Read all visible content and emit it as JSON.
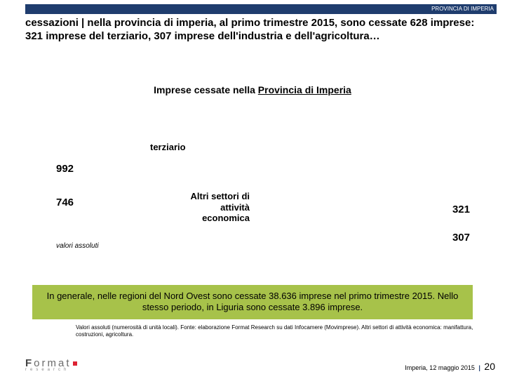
{
  "header": {
    "label": "PROVINCIA DI IMPERIA"
  },
  "title": {
    "lead": "cessazioni",
    "rest": " | nella provincia di imperia, al primo trimestre 2015, sono cessate 628 imprese: 321 imprese del terziario, 307 imprese dell'industria e dell'agricoltura…"
  },
  "chart": {
    "title_prefix": "Imprese cessate nella ",
    "title_underline": "Provincia di Imperia",
    "series": {
      "terziario": {
        "label": "terziario",
        "v2013": 992,
        "v2015": 321,
        "color": "#1f3d6e"
      },
      "altri": {
        "label": "Altri settori di attività economica",
        "v2013": 746,
        "v2015": 307,
        "color": "#8fa6c9"
      }
    },
    "note": "valori assoluti"
  },
  "greenbox": "In generale, nelle regioni del Nord Ovest sono cessate 38.636 imprese nel primo trimestre 2015. Nello stesso periodo, in Liguria sono cessate 3.896 imprese.",
  "footnote": "Valori assoluti (numerosità di unità locali). Fonte: elaborazione Format Research su dati Infocamere (Movimprese). Altri settori di attività economica: manifattura, costruzioni, agricoltura.",
  "footer": {
    "place_date": "Imperia, 12 maggio 2015",
    "page": "20"
  },
  "colors": {
    "header_bar": "#1f3d6e",
    "green": "#a7c24a"
  }
}
